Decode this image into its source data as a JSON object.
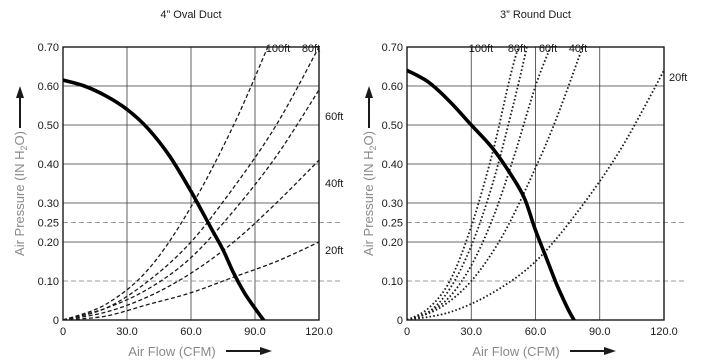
{
  "chart_data": [
    {
      "type": "line",
      "title": "4” Oval Duct",
      "xlabel": "Air Flow (CFM)",
      "ylabel_prefix": "Air Pressure (IN H",
      "ylabel_sub": "2",
      "ylabel_suffix": "O)",
      "xlim": [
        0,
        120
      ],
      "ylim": [
        0,
        0.7
      ],
      "xticks": [
        0,
        30,
        60,
        90,
        120
      ],
      "xtick_labels": [
        "0",
        "30.0",
        "60.0",
        "90.0",
        "120.0"
      ],
      "yticks": [
        0,
        0.1,
        0.2,
        0.25,
        0.3,
        0.4,
        0.5,
        0.6,
        0.7
      ],
      "ytick_labels": [
        "0",
        "0.10",
        "0.20",
        "0.25",
        "0.30",
        "0.40",
        "0.50",
        "0.60",
        "0.70"
      ],
      "dashed_gridlines_y": [
        0.1,
        0.25
      ],
      "fan_curve": {
        "x": [
          0,
          10,
          20,
          30,
          40,
          50,
          60,
          65,
          70,
          75,
          80,
          85,
          90,
          94
        ],
        "y": [
          0.615,
          0.6,
          0.575,
          0.54,
          0.49,
          0.42,
          0.33,
          0.28,
          0.23,
          0.18,
          0.12,
          0.07,
          0.03,
          0.0
        ]
      },
      "system_curves": [
        {
          "name": "100ft",
          "x": [
            0,
            20,
            40,
            60,
            80,
            96
          ],
          "y": [
            0,
            0.04,
            0.13,
            0.29,
            0.5,
            0.7
          ]
        },
        {
          "name": "80ft",
          "x": [
            0,
            20,
            40,
            60,
            80,
            100,
            120
          ],
          "y": [
            0,
            0.03,
            0.1,
            0.2,
            0.34,
            0.5,
            0.7
          ]
        },
        {
          "name": "60ft",
          "x": [
            0,
            20,
            40,
            60,
            80,
            100,
            120
          ],
          "y": [
            0,
            0.03,
            0.08,
            0.16,
            0.28,
            0.42,
            0.59
          ]
        },
        {
          "name": "40ft",
          "x": [
            0,
            20,
            40,
            60,
            80,
            100,
            120
          ],
          "y": [
            0,
            0.02,
            0.06,
            0.12,
            0.2,
            0.3,
            0.41
          ]
        },
        {
          "name": "20ft",
          "x": [
            0,
            20,
            40,
            60,
            80,
            100,
            120
          ],
          "y": [
            0,
            0.01,
            0.04,
            0.07,
            0.11,
            0.15,
            0.2
          ]
        }
      ]
    },
    {
      "type": "line",
      "title": "3” Round Duct",
      "xlabel": "Air Flow (CFM)",
      "ylabel_prefix": "Air Pressure (IN H",
      "ylabel_sub": "2",
      "ylabel_suffix": "O)",
      "xlim": [
        0,
        120
      ],
      "ylim": [
        0,
        0.7
      ],
      "xticks": [
        0,
        30,
        60,
        90,
        120
      ],
      "xtick_labels": [
        "0",
        "30.0",
        "60.0",
        "90.0",
        "120.0"
      ],
      "yticks": [
        0,
        0.1,
        0.2,
        0.25,
        0.3,
        0.4,
        0.5,
        0.6,
        0.7
      ],
      "ytick_labels": [
        "0",
        "0.10",
        "0.20",
        "0.25",
        "0.30",
        "0.40",
        "0.50",
        "0.60",
        "0.70"
      ],
      "dashed_gridlines_y": [
        0.1,
        0.25
      ],
      "fan_curve": {
        "x": [
          0,
          10,
          20,
          30,
          40,
          50,
          55,
          60,
          65,
          70,
          75,
          78
        ],
        "y": [
          0.64,
          0.61,
          0.56,
          0.5,
          0.44,
          0.36,
          0.31,
          0.23,
          0.16,
          0.09,
          0.03,
          0.0
        ]
      },
      "system_curves": [
        {
          "name": "100ft",
          "x": [
            0,
            10,
            20,
            30,
            40,
            48,
            52
          ],
          "y": [
            0,
            0.03,
            0.1,
            0.24,
            0.43,
            0.62,
            0.7
          ]
        },
        {
          "name": "80ft",
          "x": [
            0,
            10,
            20,
            30,
            40,
            50,
            56
          ],
          "y": [
            0,
            0.02,
            0.08,
            0.19,
            0.35,
            0.56,
            0.7
          ]
        },
        {
          "name": "60ft",
          "x": [
            0,
            10,
            20,
            30,
            40,
            50,
            60,
            67
          ],
          "y": [
            0,
            0.02,
            0.06,
            0.14,
            0.26,
            0.42,
            0.6,
            0.7
          ]
        },
        {
          "name": "40ft",
          "x": [
            0,
            15,
            30,
            45,
            60,
            70,
            82
          ],
          "y": [
            0,
            0.03,
            0.1,
            0.22,
            0.39,
            0.52,
            0.7
          ]
        },
        {
          "name": "20ft",
          "x": [
            0,
            20,
            40,
            60,
            80,
            100,
            120
          ],
          "y": [
            0,
            0.02,
            0.07,
            0.15,
            0.28,
            0.44,
            0.64
          ]
        }
      ]
    }
  ]
}
